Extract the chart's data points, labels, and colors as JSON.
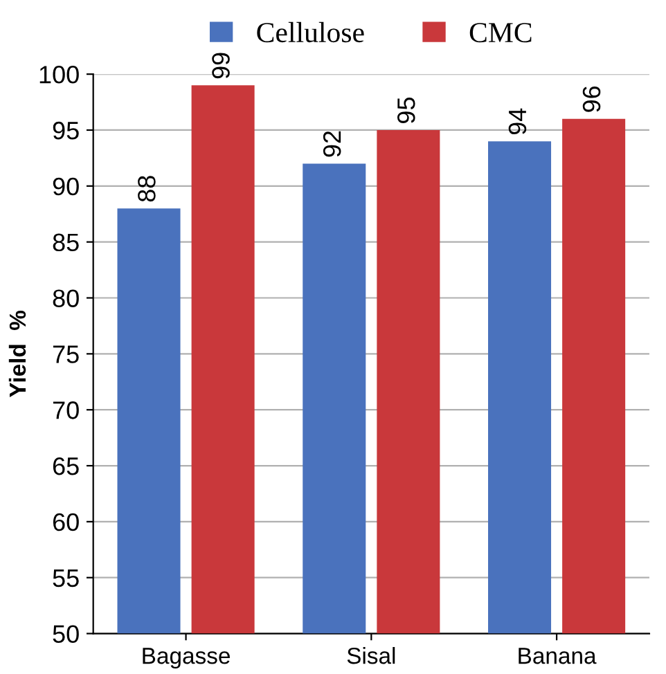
{
  "chart_data": {
    "type": "bar",
    "ylabel": "Yield  %",
    "categories": [
      "Bagasse",
      "Sisal",
      "Banana"
    ],
    "series": [
      {
        "name": "Cellulose",
        "color": "#4a72bd",
        "values": [
          88,
          92,
          94
        ]
      },
      {
        "name": "CMC",
        "color": "#c9383b",
        "values": [
          99,
          95,
          96
        ]
      }
    ],
    "ylim": [
      50,
      100
    ],
    "yticks": [
      50,
      55,
      60,
      65,
      70,
      75,
      80,
      85,
      90,
      95,
      100
    ],
    "grid": "y",
    "legend": "top",
    "data_labels": true
  }
}
